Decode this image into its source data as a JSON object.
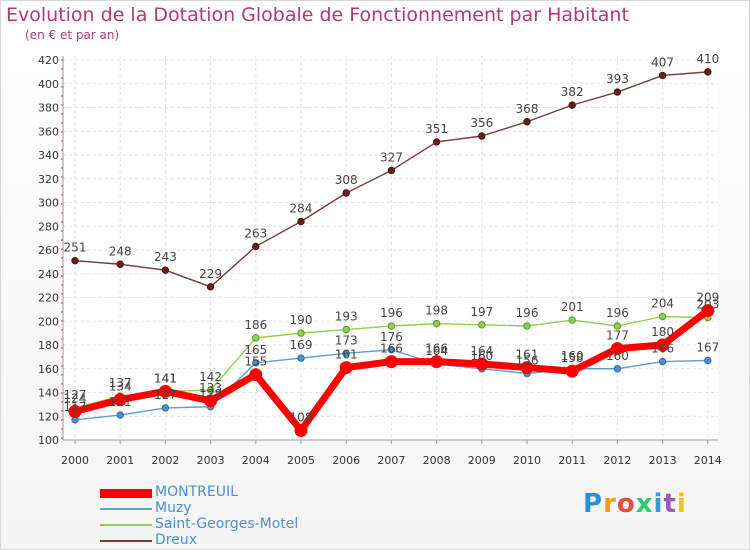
{
  "title": "Evolution de la Dotation Globale de Fonctionnement par Habitant",
  "subtitle": "(en € et par an)",
  "logo_text": "Proxiti",
  "chart_data": {
    "type": "line",
    "title": "Evolution de la Dotation Globale de Fonctionnement par Habitant",
    "subtitle": "(en € et par an)",
    "xlabel": "",
    "ylabel": "",
    "ylim": [
      100,
      420
    ],
    "y_ticks": [
      100,
      120,
      140,
      160,
      180,
      200,
      220,
      240,
      260,
      280,
      300,
      320,
      340,
      360,
      380,
      400,
      420
    ],
    "grid": true,
    "legend_position": "bottom-left",
    "categories": [
      "2000",
      "2001",
      "2002",
      "2003",
      "2004",
      "2005",
      "2006",
      "2007",
      "2008",
      "2009",
      "2010",
      "2011",
      "2012",
      "2013",
      "2014"
    ],
    "series": [
      {
        "name": "MONTREUIL",
        "color": "#ff0000",
        "values": [
          124,
          134,
          141,
          133,
          155,
          108,
          161,
          166,
          166,
          164,
          161,
          158,
          177,
          180,
          209
        ]
      },
      {
        "name": "Muzy",
        "color": "#5b9fd6",
        "values": [
          117,
          121,
          127,
          128,
          165,
          169,
          173,
          176,
          164,
          160,
          156,
          160,
          160,
          166,
          167
        ]
      },
      {
        "name": "Saint-Georges-Motel",
        "color": "#8fd14f",
        "values": [
          127,
          137,
          141,
          142,
          186,
          190,
          193,
          196,
          198,
          197,
          196,
          201,
          196,
          204,
          203
        ]
      },
      {
        "name": "Dreux",
        "color": "#7a3a3a",
        "values": [
          251,
          248,
          243,
          229,
          263,
          284,
          308,
          327,
          351,
          356,
          368,
          382,
          393,
          407,
          410
        ]
      }
    ]
  }
}
